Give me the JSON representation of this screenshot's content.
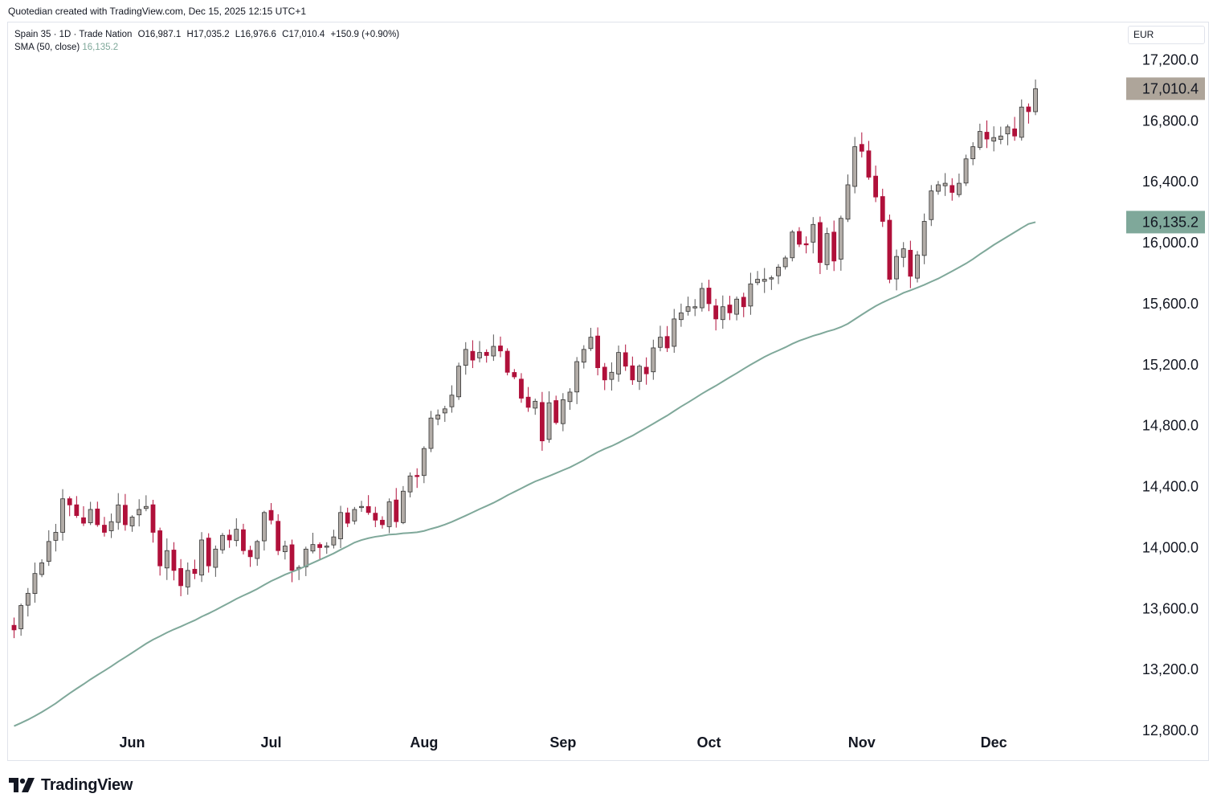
{
  "credit": "Quotedian created with TradingView.com, Dec 15, 2025 12:15 UTC+1",
  "legend": {
    "symbol": "Spain 35 · 1D · Trade Nation",
    "open": "O16,987.1",
    "high": "H17,035.2",
    "low": "L16,976.6",
    "close": "C17,010.4",
    "change": "+150.9 (+0.90%)",
    "sma_label": "SMA (50, close)",
    "sma_value": "16,135.2"
  },
  "currency": "EUR",
  "brand": "TradingView",
  "colors": {
    "up": "#b2aca7",
    "down": "#b0103a",
    "sma": "#7fa89a",
    "price_badge": "#aea59a",
    "sma_badge": "#7fa89a"
  },
  "chart_data": {
    "type": "candlestick",
    "title": "Spain 35 · 1D · Trade Nation",
    "ylim": [
      12600,
      17450
    ],
    "yticks": [
      17200,
      16800,
      16400,
      16000,
      15600,
      15200,
      14800,
      14400,
      14000,
      13600,
      13200,
      12800
    ],
    "ytick_labels": [
      "17,200.0",
      "16,800.0",
      "16,400.0",
      "16,000.0",
      "15,600.0",
      "15,200.0",
      "14,800.0",
      "14,400.0",
      "14,000.0",
      "13,600.0",
      "13,200.0",
      "12,800.0"
    ],
    "x_months": [
      {
        "label": "Jun",
        "index": 17
      },
      {
        "label": "Jul",
        "index": 37
      },
      {
        "label": "Aug",
        "index": 59
      },
      {
        "label": "Sep",
        "index": 79
      },
      {
        "label": "Oct",
        "index": 100
      },
      {
        "label": "Nov",
        "index": 122
      },
      {
        "label": "Dec",
        "index": 141
      }
    ],
    "closes": [
      13460,
      13620,
      13700,
      13830,
      13900,
      14040,
      14100,
      14320,
      14280,
      14210,
      14160,
      14250,
      14150,
      14100,
      14170,
      14280,
      14150,
      14200,
      14250,
      14270,
      14100,
      13880,
      13980,
      13850,
      13750,
      13850,
      13830,
      14050,
      13880,
      13990,
      14080,
      14050,
      14120,
      13980,
      13940,
      14040,
      14230,
      14180,
      13980,
      14010,
      13850,
      13870,
      13990,
      14020,
      14000,
      14010,
      14070,
      14230,
      14160,
      14250,
      14270,
      14230,
      14180,
      14150,
      14300,
      14170,
      14370,
      14470,
      14470,
      14650,
      14850,
      14870,
      14910,
      15000,
      15190,
      15300,
      15230,
      15280,
      15260,
      15320,
      15290,
      15150,
      15120,
      14980,
      14920,
      14960,
      14700,
      14950,
      14820,
      14970,
      15020,
      15220,
      15300,
      15380,
      15180,
      15100,
      15150,
      15280,
      15190,
      15100,
      15190,
      15140,
      15310,
      15380,
      15310,
      15500,
      15540,
      15580,
      15580,
      15700,
      15600,
      15500,
      15580,
      15540,
      15630,
      15580,
      15730,
      15760,
      15760,
      15770,
      15840,
      15900,
      16070,
      15990,
      15990,
      16120,
      15870,
      16060,
      15880,
      16160,
      16380,
      16630,
      16600,
      16430,
      16300,
      16140,
      15760,
      15910,
      15960,
      15780,
      15920,
      16140,
      16340,
      16380,
      16390,
      16330,
      16390,
      16550,
      16630,
      16730,
      16680,
      16690,
      16700,
      16760,
      16700,
      16890,
      16860,
      17010
    ],
    "sma_current": 16135.2,
    "price_current": 17010.4,
    "price_label": "17,010.4",
    "sma_label": "16,135.2"
  }
}
